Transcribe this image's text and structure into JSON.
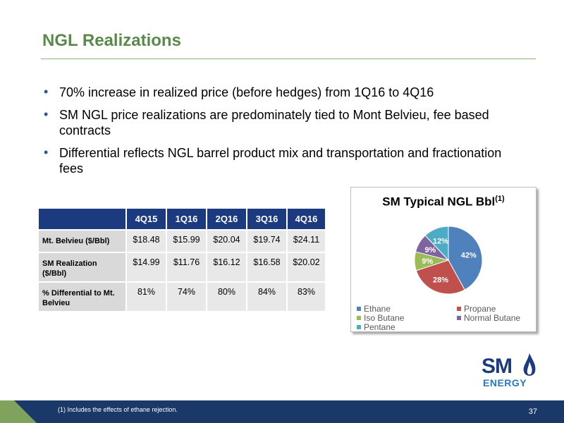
{
  "slide": {
    "title": "NGL Realizations",
    "bullets": [
      "70% increase in realized price (before hedges) from 1Q16 to 4Q16",
      "SM NGL price realizations are predominately tied to Mont Belvieu, fee based contracts",
      "Differential reflects NGL barrel product mix and transportation and fractionation fees"
    ]
  },
  "table": {
    "headers": [
      "",
      "4Q15",
      "1Q16",
      "2Q16",
      "3Q16",
      "4Q16"
    ],
    "rows": [
      {
        "label": "Mt. Belvieu ($/Bbl)",
        "values": [
          "$18.48",
          "$15.99",
          "$20.04",
          "$19.74",
          "$24.11"
        ]
      },
      {
        "label": "SM Realization ($/Bbl)",
        "values": [
          "$14.99",
          "$11.76",
          "$16.12",
          "$16.58",
          "$20.02"
        ]
      },
      {
        "label": "% Differential to Mt. Belvieu",
        "values": [
          "81%",
          "74%",
          "80%",
          "84%",
          "83%"
        ]
      }
    ]
  },
  "chart_data": {
    "type": "pie",
    "title": "SM Typical NGL Bbl",
    "title_superscript": "(1)",
    "legend_position": "bottom",
    "slices": [
      {
        "name": "Ethane",
        "value": 42,
        "label": "42%",
        "color": "#4f81bd"
      },
      {
        "name": "Propane",
        "value": 28,
        "label": "28%",
        "color": "#c0504d"
      },
      {
        "name": "Iso Butane",
        "value": 9,
        "label": "9%",
        "color": "#9bbb59"
      },
      {
        "name": "Normal Butane",
        "value": 9,
        "label": "9%",
        "color": "#8064a2"
      },
      {
        "name": "Pentane",
        "value": 12,
        "label": "12%",
        "color": "#4bacc6"
      }
    ]
  },
  "logo": {
    "sm": "SM",
    "energy": "ENERGY"
  },
  "footer": {
    "footnote": "(1)   Includes the effects of ethane rejection.",
    "page_number": "37"
  },
  "colors": {
    "title_green": "#5a8a4a",
    "navy": "#1b3a80",
    "footer_navy": "#1a3868",
    "accent_green": "#7fa35c"
  }
}
